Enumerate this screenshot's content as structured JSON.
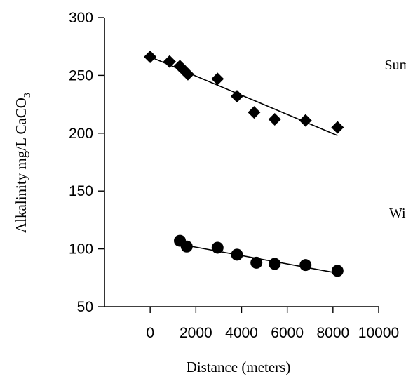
{
  "chart_data": {
    "type": "scatter",
    "xlabel": "Distance (meters)",
    "ylabel": "Alkalinity mg/L CaCO",
    "ylabel_subscript": "3",
    "xlim": [
      -2000,
      10000
    ],
    "ylim": [
      50,
      300
    ],
    "x_ticks": [
      0,
      2000,
      4000,
      6000,
      8000,
      10000
    ],
    "x_tick_labels": [
      "0",
      "2000",
      "4000",
      "6000",
      "8000",
      "10000"
    ],
    "y_ticks": [
      50,
      100,
      150,
      200,
      250,
      300
    ],
    "y_tick_labels": [
      "50",
      "100",
      "150",
      "200",
      "250",
      "300"
    ],
    "grid": false,
    "series": [
      {
        "name": "Summer",
        "marker": "diamond",
        "label_at": [
          11300,
          255
        ],
        "color": "#000000",
        "points": [
          {
            "x": 0,
            "y": 266
          },
          {
            "x": 850,
            "y": 262
          },
          {
            "x": 1300,
            "y": 258
          },
          {
            "x": 1450,
            "y": 255
          },
          {
            "x": 1650,
            "y": 251
          },
          {
            "x": 2950,
            "y": 247
          },
          {
            "x": 3800,
            "y": 232
          },
          {
            "x": 4550,
            "y": 218
          },
          {
            "x": 5450,
            "y": 212
          },
          {
            "x": 6800,
            "y": 211
          },
          {
            "x": 8200,
            "y": 205
          }
        ],
        "fit": {
          "x0": 0,
          "y0": 266,
          "x1": 8200,
          "y1": 198
        }
      },
      {
        "name": "Winter",
        "marker": "circle",
        "label_at": [
          11300,
          127
        ],
        "color": "#000000",
        "points": [
          {
            "x": 1300,
            "y": 107
          },
          {
            "x": 1600,
            "y": 102
          },
          {
            "x": 2950,
            "y": 101
          },
          {
            "x": 3800,
            "y": 95
          },
          {
            "x": 4650,
            "y": 88
          },
          {
            "x": 5450,
            "y": 87
          },
          {
            "x": 6800,
            "y": 86
          },
          {
            "x": 8200,
            "y": 81
          }
        ],
        "fit": {
          "x0": 1300,
          "y0": 104,
          "x1": 8200,
          "y1": 79
        }
      }
    ]
  }
}
